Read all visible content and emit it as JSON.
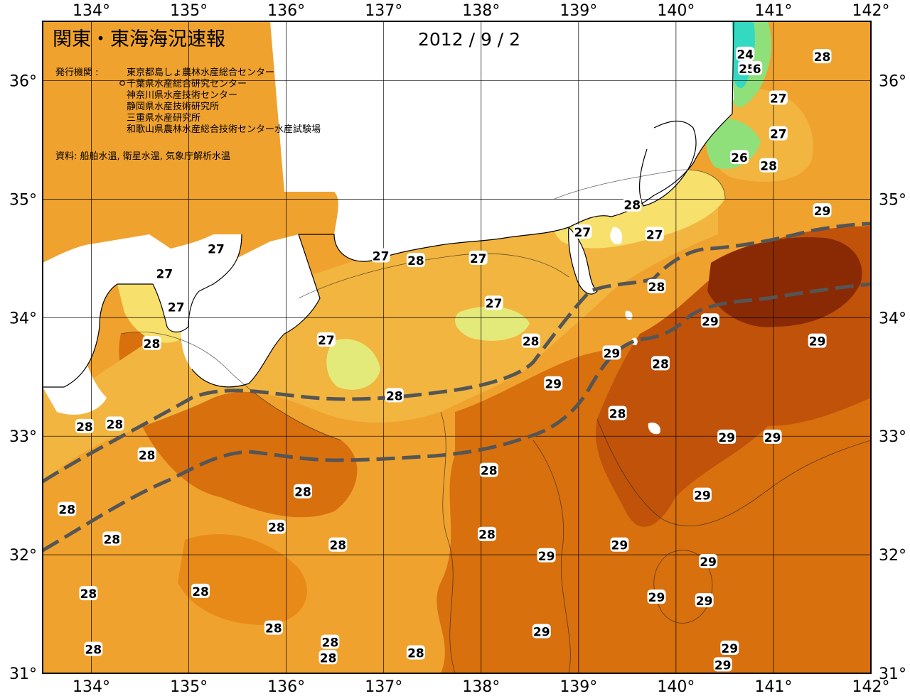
{
  "title": "関東・東海海況速報",
  "date": "2012 / 9 / 2",
  "issuer_label": "発行機関 :",
  "issuers": [
    "東京都島しょ農林水産総合センター",
    "千葉県水産総合研究センター",
    "神奈川県水産技術センター",
    "静岡県水産技術研究所",
    "三重県水産研究所",
    "和歌山県農林水産総合技術センター水産試験場"
  ],
  "source": "資料: 船舶水温, 衛星水温, 気象庁解析水温",
  "lon_labels": [
    "134°",
    "135°",
    "136°",
    "137°",
    "138°",
    "139°",
    "140°",
    "141°",
    "142°"
  ],
  "lat_labels": [
    "36°",
    "35°",
    "34°",
    "33°",
    "32°",
    "31°"
  ],
  "map": {
    "lon_range": [
      133.5,
      142.0
    ],
    "lat_range": [
      31.0,
      36.5
    ],
    "colors": {
      "t24": "#33d9c0",
      "t25": "#8fe07a",
      "t26": "#e3ea7a",
      "t27": "#f7e06c",
      "t28": "#f2b540",
      "t28b": "#f0a22e",
      "t29": "#e88a18",
      "t29b": "#d8700e",
      "t30": "#c0520a",
      "t31": "#8a2a04",
      "land": "#ffffff",
      "front": "#555555"
    }
  },
  "sst_labels": [
    {
      "text": "24",
      "lon": 140.71,
      "lat": 36.22
    },
    {
      "text": "25",
      "lon": 140.73,
      "lat": 36.1
    },
    {
      "text": "6",
      "lon": 140.83,
      "lat": 36.1
    },
    {
      "text": "28",
      "lon": 141.5,
      "lat": 36.2
    },
    {
      "text": "27",
      "lon": 141.05,
      "lat": 35.85
    },
    {
      "text": "27",
      "lon": 141.05,
      "lat": 35.55
    },
    {
      "text": "26",
      "lon": 140.65,
      "lat": 35.35
    },
    {
      "text": "28",
      "lon": 140.95,
      "lat": 35.28
    },
    {
      "text": "28",
      "lon": 139.55,
      "lat": 34.95
    },
    {
      "text": "29",
      "lon": 141.5,
      "lat": 34.9
    },
    {
      "text": "27",
      "lon": 139.04,
      "lat": 34.72
    },
    {
      "text": "27",
      "lon": 139.78,
      "lat": 34.7
    },
    {
      "text": "28",
      "lon": 139.8,
      "lat": 34.26
    },
    {
      "text": "29",
      "lon": 140.35,
      "lat": 33.97
    },
    {
      "text": "29",
      "lon": 141.45,
      "lat": 33.8
    },
    {
      "text": "27",
      "lon": 135.28,
      "lat": 34.58
    },
    {
      "text": "27",
      "lon": 134.75,
      "lat": 34.37
    },
    {
      "text": "27",
      "lon": 134.87,
      "lat": 34.09
    },
    {
      "text": "28",
      "lon": 134.62,
      "lat": 33.78
    },
    {
      "text": "27",
      "lon": 136.97,
      "lat": 34.52
    },
    {
      "text": "28",
      "lon": 137.33,
      "lat": 34.48
    },
    {
      "text": "27",
      "lon": 137.97,
      "lat": 34.5
    },
    {
      "text": "27",
      "lon": 138.13,
      "lat": 34.12
    },
    {
      "text": "27",
      "lon": 136.41,
      "lat": 33.81
    },
    {
      "text": "28",
      "lon": 138.51,
      "lat": 33.8
    },
    {
      "text": "29",
      "lon": 139.34,
      "lat": 33.7
    },
    {
      "text": "28",
      "lon": 139.84,
      "lat": 33.61
    },
    {
      "text": "29",
      "lon": 138.74,
      "lat": 33.44
    },
    {
      "text": "28",
      "lon": 137.11,
      "lat": 33.34
    },
    {
      "text": "28",
      "lon": 139.4,
      "lat": 33.19
    },
    {
      "text": "28",
      "lon": 133.93,
      "lat": 33.08
    },
    {
      "text": "28",
      "lon": 134.24,
      "lat": 33.1
    },
    {
      "text": "29",
      "lon": 140.52,
      "lat": 32.99
    },
    {
      "text": "29",
      "lon": 140.99,
      "lat": 32.99
    },
    {
      "text": "28",
      "lon": 134.57,
      "lat": 32.84
    },
    {
      "text": "28",
      "lon": 138.08,
      "lat": 32.71
    },
    {
      "text": "28",
      "lon": 136.17,
      "lat": 32.53
    },
    {
      "text": "29",
      "lon": 140.27,
      "lat": 32.5
    },
    {
      "text": "28",
      "lon": 133.75,
      "lat": 32.38
    },
    {
      "text": "28",
      "lon": 135.9,
      "lat": 32.23
    },
    {
      "text": "28",
      "lon": 138.06,
      "lat": 32.17
    },
    {
      "text": "28",
      "lon": 134.21,
      "lat": 32.13
    },
    {
      "text": "28",
      "lon": 136.53,
      "lat": 32.08
    },
    {
      "text": "29",
      "lon": 139.42,
      "lat": 32.08
    },
    {
      "text": "29",
      "lon": 138.67,
      "lat": 31.99
    },
    {
      "text": "29",
      "lon": 140.33,
      "lat": 31.94
    },
    {
      "text": "28",
      "lon": 135.12,
      "lat": 31.69
    },
    {
      "text": "28",
      "lon": 133.97,
      "lat": 31.67
    },
    {
      "text": "29",
      "lon": 139.8,
      "lat": 31.64
    },
    {
      "text": "29",
      "lon": 140.29,
      "lat": 31.61
    },
    {
      "text": "28",
      "lon": 135.87,
      "lat": 31.38
    },
    {
      "text": "29",
      "lon": 138.62,
      "lat": 31.35
    },
    {
      "text": "28",
      "lon": 136.45,
      "lat": 31.26
    },
    {
      "text": "28",
      "lon": 134.02,
      "lat": 31.2
    },
    {
      "text": "28",
      "lon": 137.33,
      "lat": 31.17
    },
    {
      "text": "28",
      "lon": 136.43,
      "lat": 31.13
    },
    {
      "text": "29",
      "lon": 140.55,
      "lat": 31.21
    },
    {
      "text": "29",
      "lon": 140.48,
      "lat": 31.07
    }
  ]
}
